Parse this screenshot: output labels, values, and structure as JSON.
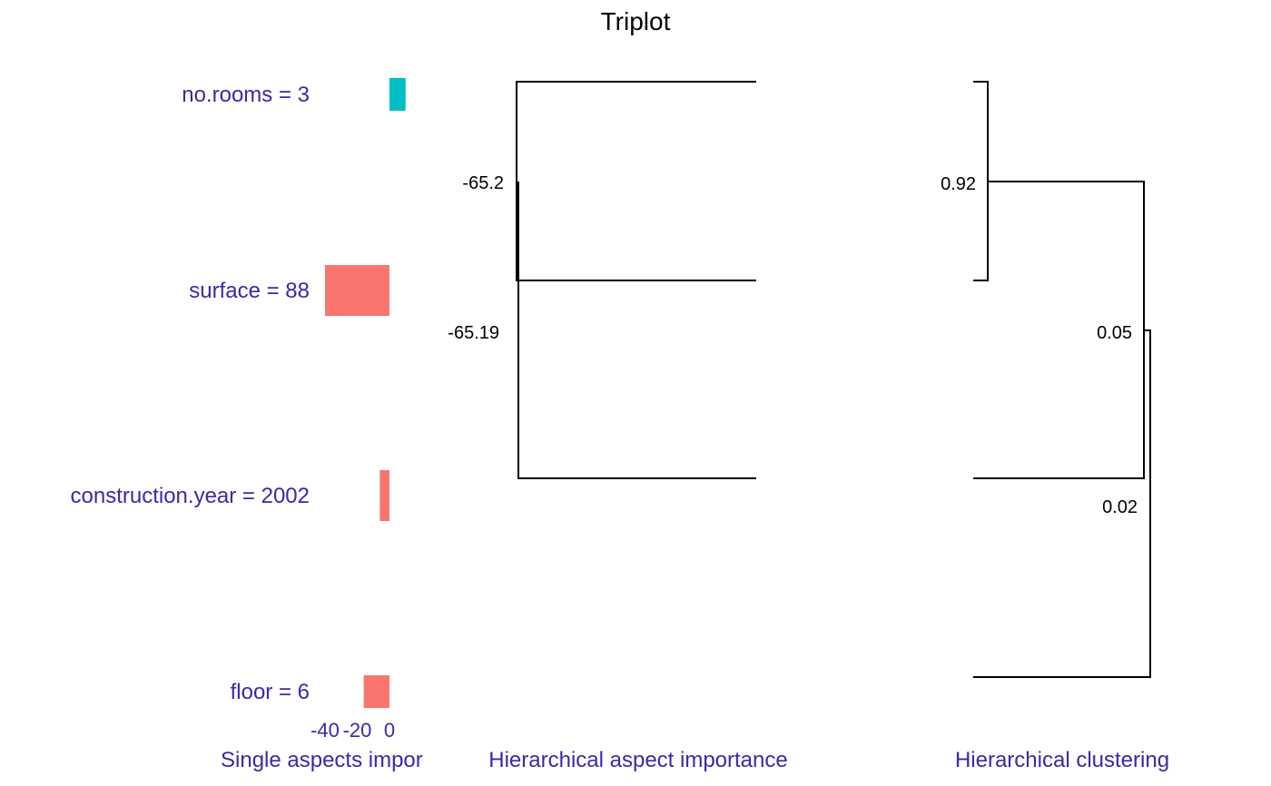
{
  "chart_data": [
    {
      "type": "bar",
      "title": "Triplot",
      "panel_label": "Single aspects importance",
      "orientation": "horizontal",
      "categories": [
        "no.rooms = 3",
        "surface = 88",
        "construction.year = 2002",
        "floor = 6"
      ],
      "values": [
        10,
        -40,
        -6,
        -16
      ],
      "xlim": [
        -40,
        10
      ],
      "tick_labels": [
        "-40",
        "-20",
        "0"
      ],
      "colors": {
        "positive": "#00bfc4",
        "negative": "#f8766d"
      }
    },
    {
      "type": "dendrogram",
      "panel_label": "Hierarchical aspect importance",
      "leaves": [
        "no.rooms = 3",
        "surface = 88",
        "construction.year = 2002",
        "floor = 6"
      ],
      "merges": [
        {
          "members": [
            "no.rooms = 3",
            "surface = 88"
          ],
          "label": "-65.2"
        },
        {
          "members": [
            "no.rooms = 3",
            "surface = 88",
            "construction.year = 2002"
          ],
          "label": "-65.19"
        }
      ]
    },
    {
      "type": "dendrogram",
      "panel_label": "Hierarchical clustering",
      "leaves": [
        "no.rooms = 3",
        "surface = 88",
        "construction.year = 2002",
        "floor = 6"
      ],
      "merges": [
        {
          "members": [
            "no.rooms = 3",
            "surface = 88"
          ],
          "height": 0.92,
          "label": "0.92"
        },
        {
          "members": [
            "no.rooms = 3",
            "surface = 88",
            "construction.year = 2002"
          ],
          "height": 0.05,
          "label": "0.05"
        },
        {
          "members": [
            "no.rooms = 3",
            "surface = 88",
            "construction.year = 2002",
            "floor = 6"
          ],
          "height": 0.02,
          "label": "0.02"
        }
      ]
    }
  ]
}
